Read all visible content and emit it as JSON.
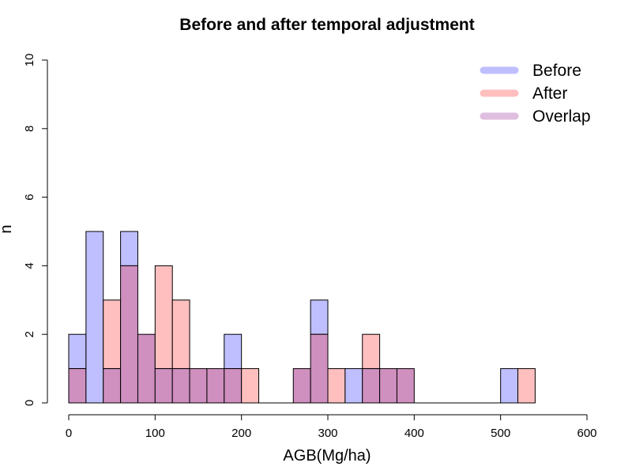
{
  "chart_data": {
    "type": "histogram",
    "title": "Before and after temporal adjustment",
    "xlabel": "AGB(Mg/ha)",
    "ylabel": "n",
    "xlim": [
      0,
      600
    ],
    "ylim": [
      0,
      10
    ],
    "x_ticks": [
      "0",
      "100",
      "200",
      "300",
      "400",
      "500",
      "600"
    ],
    "y_ticks": [
      "0",
      "2",
      "4",
      "6",
      "8",
      "10"
    ],
    "bin_width": 20,
    "bin_starts": [
      0,
      20,
      40,
      60,
      80,
      100,
      120,
      140,
      160,
      180,
      200,
      220,
      240,
      260,
      280,
      300,
      320,
      340,
      360,
      380,
      400,
      420,
      440,
      460,
      480,
      500,
      520
    ],
    "series": [
      {
        "name": "Before",
        "color": "#bfbfff",
        "counts": [
          2,
          5,
          1,
          5,
          2,
          1,
          1,
          1,
          1,
          2,
          0,
          0,
          0,
          1,
          3,
          0,
          1,
          1,
          1,
          1,
          0,
          0,
          0,
          0,
          0,
          1,
          0
        ]
      },
      {
        "name": "After",
        "color": "#ffbfbf",
        "counts": [
          1,
          0,
          3,
          4,
          2,
          4,
          3,
          1,
          1,
          1,
          1,
          0,
          0,
          1,
          2,
          1,
          0,
          2,
          1,
          1,
          0,
          0,
          0,
          0,
          0,
          0,
          1
        ]
      }
    ],
    "overlap": {
      "name": "Overlap",
      "color": "#cf8fbf",
      "legend_color": "#dfbfdf"
    },
    "legend_position": "top-right",
    "grid": false
  }
}
